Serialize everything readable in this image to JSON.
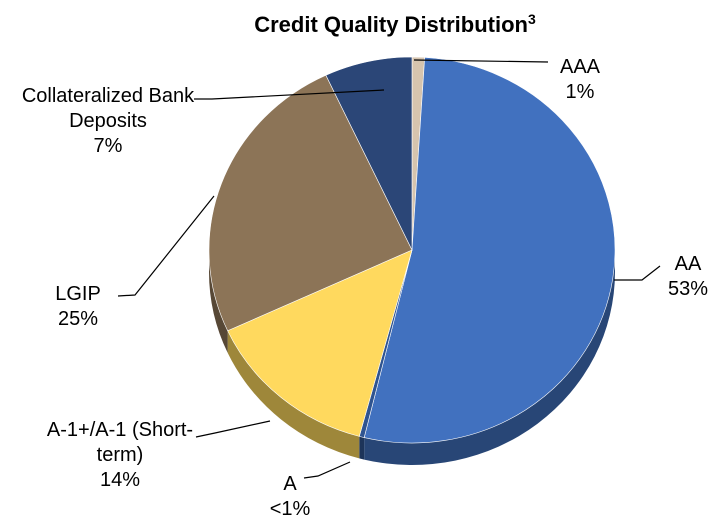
{
  "chart_data": {
    "type": "pie",
    "title": "Credit Quality Distribution",
    "title_note": "3",
    "categories": [
      "AAA",
      "AA",
      "A",
      "A-1+/A-1 (Short-term)",
      "LGIP",
      "Collateralized Bank Deposits"
    ],
    "values": [
      1,
      53,
      0.4,
      14,
      25,
      7
    ],
    "value_labels": [
      "1%",
      "53%",
      "<1%",
      "14%",
      "25%",
      "7%"
    ],
    "colors": [
      "#d6c4ae",
      "#4171bf",
      "#2f5490",
      "#ffd95e",
      "#8c7457",
      "#2b4677"
    ]
  }
}
